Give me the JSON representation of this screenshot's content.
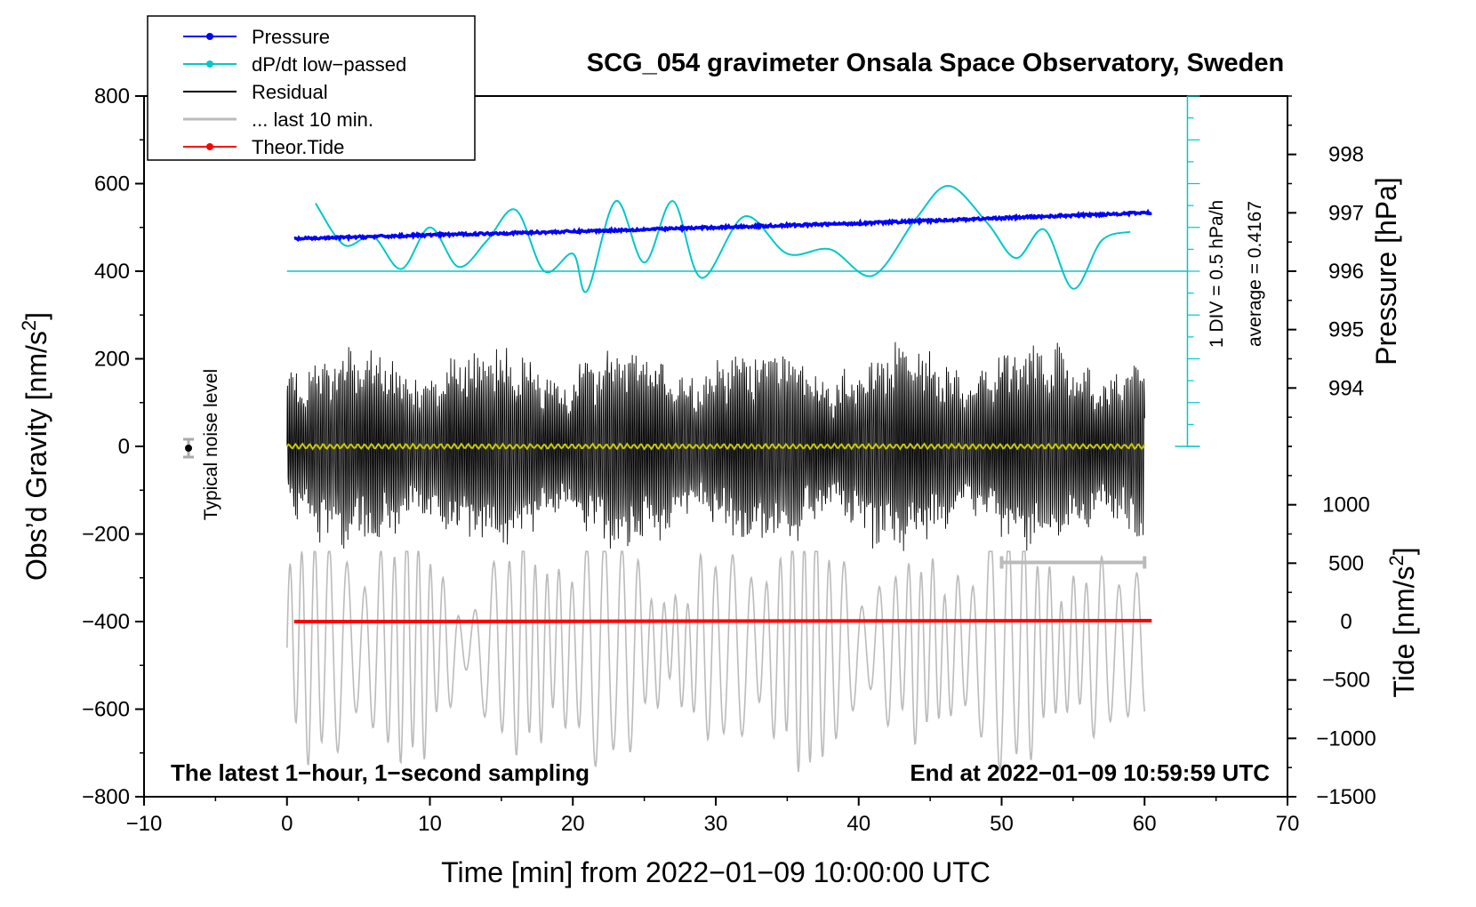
{
  "chart_data": {
    "type": "line",
    "title": "SCG_054 gravimeter Onsala Space Observatory, Sweden",
    "xlabel": "Time [min] from 2022−01−09 10:00:00 UTC",
    "ylabel_left": "Obs’d Gravity [nm/s",
    "ylabel_left_sup": "2",
    "ylabel_left_end": "]",
    "ylabel_right_top": "Pressure [hPa]",
    "ylabel_right_bottom": "Tide [nm/s",
    "ylabel_right_bottom_sup": "2",
    "ylabel_right_bottom_end": "]",
    "xlim": [
      -10,
      70
    ],
    "ylim": [
      -800,
      800
    ],
    "x_ticks": [
      -10,
      0,
      10,
      20,
      30,
      40,
      50,
      60,
      70
    ],
    "x_tick_labels": [
      "−10",
      "0",
      "10",
      "20",
      "30",
      "40",
      "50",
      "60",
      "70"
    ],
    "y_ticks": [
      800,
      600,
      400,
      200,
      0,
      -200,
      -400,
      -600,
      -800
    ],
    "y_tick_labels": [
      "800",
      "600",
      "400",
      "200",
      "0",
      "−200",
      "−400",
      "−600",
      "−800"
    ],
    "pressure_axis": {
      "range_hPa": [
        993,
        999
      ],
      "ticks": [
        998,
        997,
        996,
        995,
        994
      ],
      "tick_labels": [
        "998",
        "997",
        "996",
        "995",
        "994"
      ]
    },
    "tide_axis": {
      "ticks": [
        1000,
        500,
        0,
        -500,
        -1000,
        -1500
      ],
      "tick_labels": [
        "1000",
        "500",
        "0",
        "−500",
        "−1000",
        "−1500"
      ]
    },
    "legend": [
      {
        "label": "Pressure",
        "color": "#0000ff",
        "marker": true
      },
      {
        "label": "dP/dt low−passed",
        "color": "#00c8c8",
        "marker": true
      },
      {
        "label": "Residual",
        "color": "#000000",
        "marker": false
      },
      {
        "label": "... last 10 min.",
        "color": "#bbbbbb",
        "marker": false
      },
      {
        "label": "Theor.Tide",
        "color": "#ff0000",
        "marker": true
      }
    ],
    "legend_position": "top-left",
    "series": [
      {
        "name": "Pressure",
        "unit": "hPa",
        "x": [
          0,
          10,
          20,
          30,
          40,
          50,
          60
        ],
        "values": [
          996.55,
          996.62,
          996.68,
          996.75,
          996.82,
          996.91,
          997.0
        ]
      },
      {
        "name": "dP/dt low-passed",
        "unit": "nm/s2-equivalent",
        "x": [
          2,
          4,
          6,
          8,
          10,
          12,
          14,
          16,
          18,
          20,
          21,
          23,
          25,
          27,
          29,
          32,
          35,
          38,
          41,
          44,
          46.3,
          49,
          51,
          53,
          55,
          57,
          59
        ],
        "values": [
          555,
          460,
          480,
          405,
          500,
          410,
          470,
          540,
          400,
          440,
          355,
          560,
          420,
          560,
          385,
          525,
          440,
          450,
          390,
          520,
          595,
          510,
          430,
          495,
          360,
          470,
          490
        ]
      },
      {
        "name": "Residual",
        "amplitude_envelope_nm_s2": 250,
        "x_range": [
          0,
          60
        ]
      },
      {
        "name": "... last 10 min.",
        "x_range": [
          0,
          60
        ]
      },
      {
        "name": "Theor.Tide",
        "x": [
          0.5,
          60.5
        ],
        "values": [
          -400,
          -398
        ]
      }
    ],
    "annotations": {
      "dpdt_scale": "1 DIV = 0.5 hPa/h",
      "dpdt_average": "average = 0.4167",
      "noise_label": "Typical noise level",
      "bottom_left": "The latest 1−hour, 1−second sampling",
      "bottom_right": "End at 2022−01−09 10:59:59 UTC",
      "last10_bracket_x": [
        50,
        60
      ]
    }
  }
}
